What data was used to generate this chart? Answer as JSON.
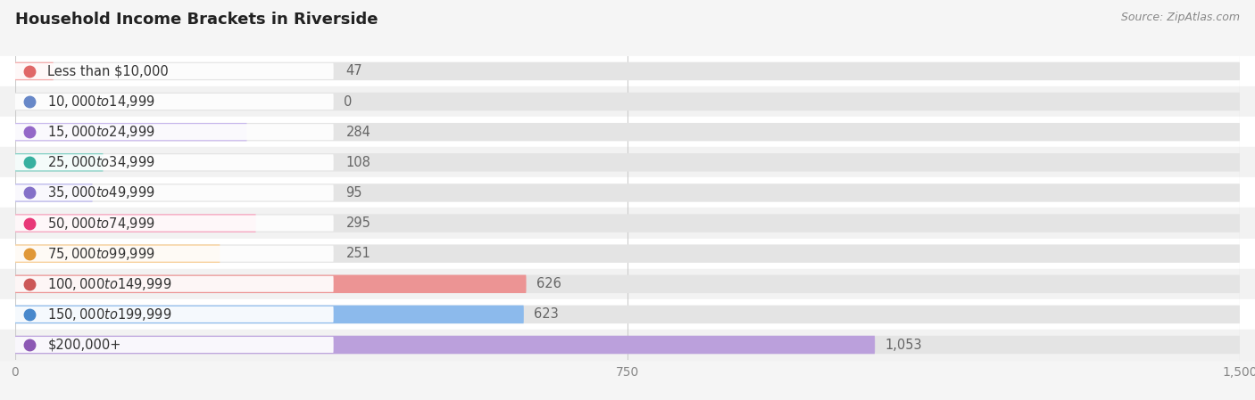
{
  "title": "Household Income Brackets in Riverside",
  "source": "Source: ZipAtlas.com",
  "categories": [
    "Less than $10,000",
    "$10,000 to $14,999",
    "$15,000 to $24,999",
    "$25,000 to $34,999",
    "$35,000 to $49,999",
    "$50,000 to $74,999",
    "$75,000 to $99,999",
    "$100,000 to $149,999",
    "$150,000 to $199,999",
    "$200,000+"
  ],
  "values": [
    47,
    0,
    284,
    108,
    95,
    295,
    251,
    626,
    623,
    1053
  ],
  "bar_colors": [
    "#f5aaaa",
    "#aabfe8",
    "#c8b8ec",
    "#80d0c4",
    "#b8b4ec",
    "#f8a0bc",
    "#f9cc90",
    "#ec9494",
    "#8cbaec",
    "#bba0dc"
  ],
  "dot_colors": [
    "#e06868",
    "#6888c8",
    "#9468c8",
    "#38b0a0",
    "#8470c8",
    "#e83878",
    "#e09838",
    "#cc5858",
    "#4888cc",
    "#8c58b4"
  ],
  "row_bg_colors": [
    "#ffffff",
    "#f2f2f2"
  ],
  "xlim": [
    0,
    1500
  ],
  "xticks": [
    0,
    750,
    1500
  ],
  "bar_bg_color": "#e4e4e4",
  "background_color": "#f5f5f5",
  "title_fontsize": 13,
  "label_fontsize": 10.5,
  "value_fontsize": 10.5,
  "source_fontsize": 9
}
